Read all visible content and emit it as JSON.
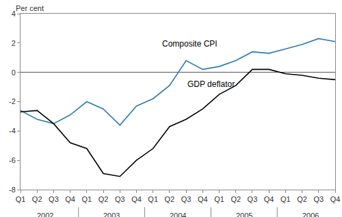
{
  "chart_data": {
    "type": "line",
    "y_label": "Per cent",
    "categories": [
      "Q1",
      "Q2",
      "Q3",
      "Q4",
      "Q1",
      "Q2",
      "Q3",
      "Q4",
      "Q1",
      "Q2",
      "Q3",
      "Q4",
      "Q1",
      "Q2",
      "Q3",
      "Q4",
      "Q1",
      "Q2",
      "Q3",
      "Q4"
    ],
    "category_groups": [
      "2002",
      "2003",
      "2004",
      "2005",
      "2006"
    ],
    "series": [
      {
        "name": "Composite CPI",
        "color": "#2a7ab8",
        "values": [
          -2.6,
          -3.2,
          -3.5,
          -2.9,
          -2.0,
          -2.5,
          -3.6,
          -2.3,
          -1.8,
          -0.9,
          0.8,
          0.2,
          0.4,
          0.8,
          1.4,
          1.3,
          1.6,
          1.9,
          2.3,
          2.1
        ]
      },
      {
        "name": "GDP deflator",
        "color": "#000000",
        "values": [
          -2.7,
          -2.6,
          -3.5,
          -4.8,
          -5.2,
          -6.9,
          -7.1,
          -6.0,
          -5.2,
          -3.7,
          -3.2,
          -2.5,
          -1.5,
          -0.9,
          0.2,
          0.2,
          -0.1,
          -0.2,
          -0.4,
          -0.5
        ]
      }
    ],
    "ylim": [
      -8,
      4
    ],
    "yticks": [
      -8,
      -6,
      -4,
      -2,
      0,
      2,
      4
    ],
    "grid": false
  }
}
